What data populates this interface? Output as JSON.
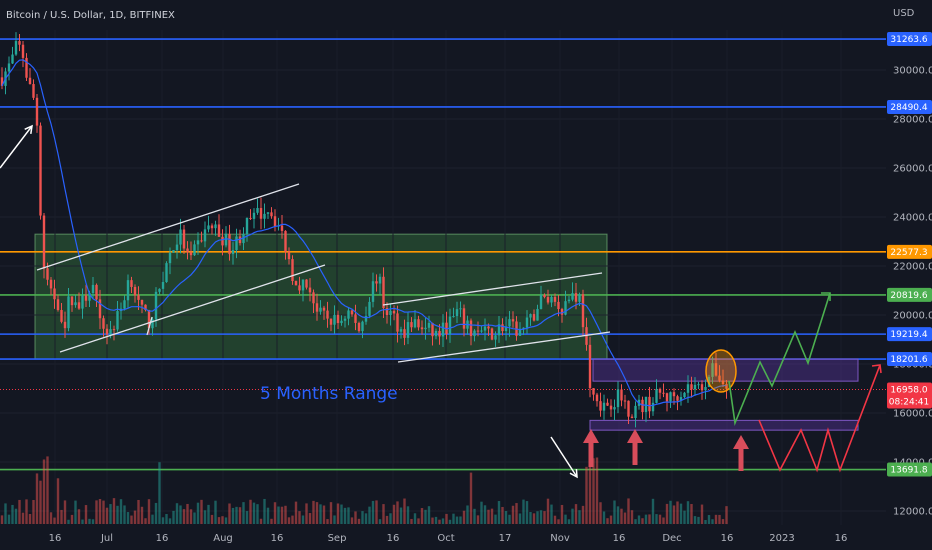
{
  "header": {
    "symbol_title": "Bitcoin / U.S. Dollar, 1D, BITFINEX",
    "currency": "USD"
  },
  "chart_data": {
    "type": "candlestick",
    "title": "Bitcoin / U.S. Dollar, 1D, BITFINEX",
    "y_unit": "USD",
    "y_ticks": [
      "12000.0",
      "14000.0",
      "16000.0",
      "18000.0",
      "20000.0",
      "22000.0",
      "24000.0",
      "26000.0",
      "28000.0",
      "30000.0"
    ],
    "x_ticks": [
      "16",
      "Jul",
      "16",
      "Aug",
      "16",
      "Sep",
      "16",
      "Oct",
      "17",
      "Nov",
      "16",
      "Dec",
      "16",
      "2023",
      "16"
    ],
    "ylim": [
      11700,
      32500
    ],
    "price_levels": [
      {
        "label": "31263.6",
        "value": 31263.6,
        "color": "#2962ff"
      },
      {
        "label": "28490.4",
        "value": 28490.4,
        "color": "#2962ff"
      },
      {
        "label": "22577.3",
        "value": 22577.3,
        "color": "#ff9800"
      },
      {
        "label": "20819.6",
        "value": 20819.6,
        "color": "#4caf50"
      },
      {
        "label": "19219.4",
        "value": 19219.4,
        "color": "#2962ff"
      },
      {
        "label": "18201.6",
        "value": 18201.6,
        "color": "#2962ff"
      },
      {
        "label": "13691.8",
        "value": 13691.8,
        "color": "#4caf50"
      }
    ],
    "last_price": {
      "label": "16958.0",
      "countdown": "08:24:41",
      "value": 16958.0,
      "color": "#f23645"
    },
    "range_box": {
      "from_price": 18201.6,
      "to_price": 23300
    },
    "resistance_zone": {
      "from_price": 17300,
      "to_price": 18201.6
    },
    "support_zone": {
      "from_price": 15300,
      "to_price": 15700
    },
    "annotations": [
      "5 Months Range"
    ],
    "moving_average_color": "#2962ff",
    "up_color": "#26a69a",
    "down_color": "#ef5350",
    "projection_up_color": "#4caf50",
    "projection_down_color": "#f23645"
  }
}
